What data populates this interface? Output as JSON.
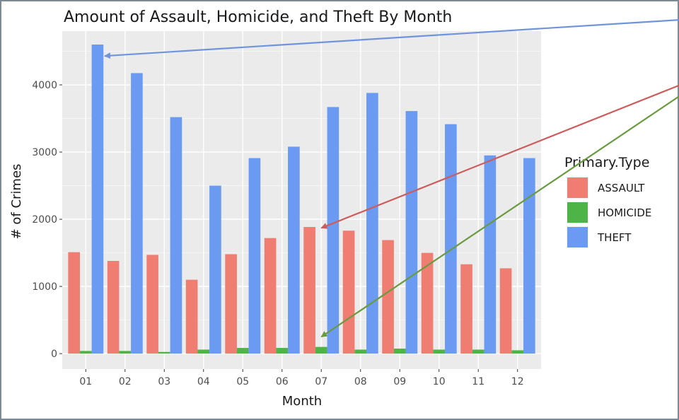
{
  "chart_data": {
    "type": "bar",
    "title": "Amount of Assault, Homicide, and Theft By Month",
    "xlabel": "Month",
    "ylabel": "# of Crimes",
    "categories": [
      "01",
      "02",
      "03",
      "04",
      "05",
      "06",
      "07",
      "08",
      "09",
      "10",
      "11",
      "12"
    ],
    "series": [
      {
        "name": "ASSAULT",
        "color": "#f07d72",
        "values": [
          1510,
          1380,
          1470,
          1100,
          1480,
          1720,
          1885,
          1830,
          1690,
          1500,
          1330,
          1270
        ]
      },
      {
        "name": "HOMICIDE",
        "color": "#4fb447",
        "values": [
          40,
          40,
          25,
          60,
          85,
          85,
          100,
          60,
          75,
          60,
          60,
          50
        ]
      },
      {
        "name": "THEFT",
        "color": "#6b9af3",
        "values": [
          4600,
          4175,
          3520,
          2500,
          2910,
          3080,
          3670,
          3880,
          3610,
          3415,
          2950,
          2910
        ]
      }
    ],
    "ylim": [
      -230,
      4800
    ],
    "yticks": [
      0,
      1000,
      2000,
      3000,
      4000
    ],
    "grid": true,
    "panel_background": "#ebebeb",
    "legend": {
      "title": "Primary.Type",
      "placement": "right"
    },
    "annotations": [
      {
        "type": "arrow",
        "color": "#6f94dc",
        "points_to": {
          "category": "01",
          "value": 4430
        }
      },
      {
        "type": "arrow",
        "color": "#cd5c5c",
        "points_to": {
          "category": "07",
          "value": 1870
        }
      },
      {
        "type": "arrow",
        "color": "#6a9a3e",
        "points_to": {
          "category": "07",
          "value": 250
        }
      }
    ]
  }
}
